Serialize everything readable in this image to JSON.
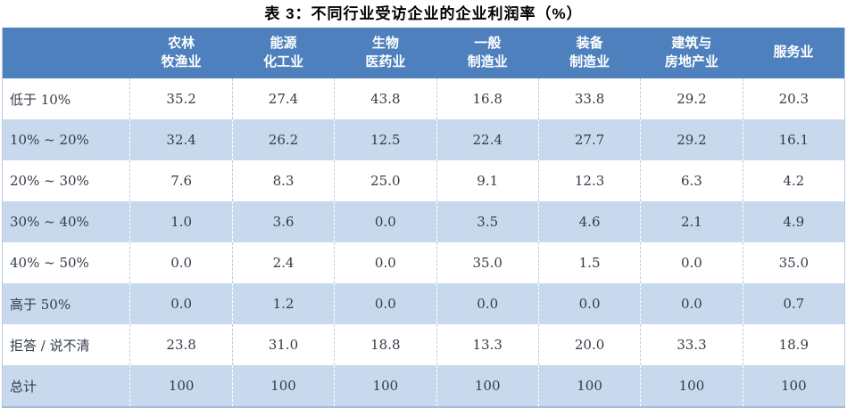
{
  "title": "表 3：不同行业受访企业的企业利润率（%）",
  "colors": {
    "header_bg": "#4D80BC",
    "header_text": "#FFFFFF",
    "stripe_row_bg": "#C9D9ED",
    "dashed_divider_on_white": "#B9CCE4",
    "dashed_divider_on_blue": "#FFFFFF",
    "bottom_rule": "#9FBCDC",
    "body_text": "#333B47",
    "title_text": "#000000"
  },
  "table": {
    "corner_label": "",
    "columns": [
      "农林\n牧渔业",
      "能源\n化工业",
      "生物\n医药业",
      "一般\n制造业",
      "装备\n制造业",
      "建筑与\n房地产业",
      "服务业"
    ],
    "rows": [
      {
        "label": "低于 10%",
        "values": [
          "35.2",
          "27.4",
          "43.8",
          "16.8",
          "33.8",
          "29.2",
          "20.3"
        ]
      },
      {
        "label": "10% ~ 20%",
        "values": [
          "32.4",
          "26.2",
          "12.5",
          "22.4",
          "27.7",
          "29.2",
          "16.1"
        ]
      },
      {
        "label": "20% ~ 30%",
        "values": [
          "7.6",
          "8.3",
          "25.0",
          "9.1",
          "12.3",
          "6.3",
          "4.2"
        ]
      },
      {
        "label": "30% ~ 40%",
        "values": [
          "1.0",
          "3.6",
          "0.0",
          "3.5",
          "4.6",
          "2.1",
          "4.9"
        ]
      },
      {
        "label": "40% ~ 50%",
        "values": [
          "0.0",
          "2.4",
          "0.0",
          "35.0",
          "1.5",
          "0.0",
          "35.0"
        ]
      },
      {
        "label": "高于 50%",
        "values": [
          "0.0",
          "1.2",
          "0.0",
          "0.0",
          "0.0",
          "0.0",
          "0.7"
        ]
      },
      {
        "label": "拒答 / 说不清",
        "values": [
          "23.8",
          "31.0",
          "18.8",
          "13.3",
          "20.0",
          "33.3",
          "18.9"
        ]
      },
      {
        "label": "总计",
        "values": [
          "100",
          "100",
          "100",
          "100",
          "100",
          "100",
          "100"
        ]
      }
    ]
  },
  "chart_data": {
    "type": "table",
    "title": "表 3：不同行业受访企业的企业利润率（%）",
    "categories": [
      "农林牧渔业",
      "能源化工业",
      "生物医药业",
      "一般制造业",
      "装备制造业",
      "建筑与房地产业",
      "服务业"
    ],
    "series": [
      {
        "name": "低于 10%",
        "values": [
          35.2,
          27.4,
          43.8,
          16.8,
          33.8,
          29.2,
          20.3
        ]
      },
      {
        "name": "10% ~ 20%",
        "values": [
          32.4,
          26.2,
          12.5,
          22.4,
          27.7,
          29.2,
          16.1
        ]
      },
      {
        "name": "20% ~ 30%",
        "values": [
          7.6,
          8.3,
          25.0,
          9.1,
          12.3,
          6.3,
          4.2
        ]
      },
      {
        "name": "30% ~ 40%",
        "values": [
          1.0,
          3.6,
          0.0,
          3.5,
          4.6,
          2.1,
          4.9
        ]
      },
      {
        "name": "40% ~ 50%",
        "values": [
          0.0,
          2.4,
          0.0,
          35.0,
          1.5,
          0.0,
          35.0
        ]
      },
      {
        "name": "高于 50%",
        "values": [
          0.0,
          1.2,
          0.0,
          0.0,
          0.0,
          0.0,
          0.7
        ]
      },
      {
        "name": "拒答 / 说不清",
        "values": [
          23.8,
          31.0,
          18.8,
          13.3,
          20.0,
          33.3,
          18.9
        ]
      },
      {
        "name": "总计",
        "values": [
          100,
          100,
          100,
          100,
          100,
          100,
          100
        ]
      }
    ]
  }
}
